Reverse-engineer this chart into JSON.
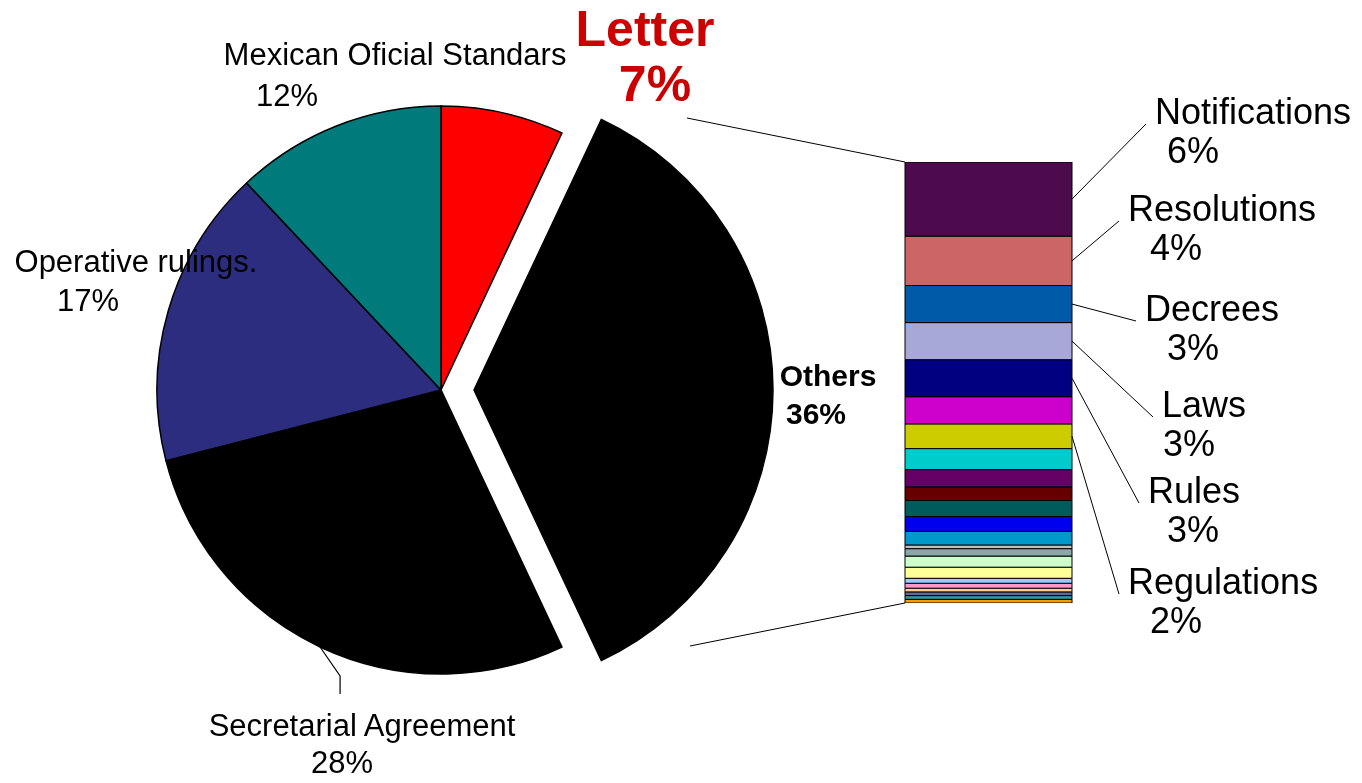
{
  "chart_data": [
    {
      "type": "pie",
      "categories": [
        "Letter",
        "Others",
        "Secretarial Agreement",
        "Operative rulings.",
        "Mexican Oficial Standars"
      ],
      "values": [
        7,
        36,
        28,
        17,
        12
      ],
      "colors": [
        "#ff0000",
        "#000000",
        "#000000",
        "#2d2d80",
        "#007a7a"
      ],
      "value_labels": [
        "7%",
        "36%",
        "28%",
        "17%",
        "12%"
      ]
    },
    {
      "type": "bar",
      "stacked": true,
      "categories": [
        null
      ],
      "tick_labels": false,
      "series": [
        {
          "color": "#ff9900",
          "values": [
            0.3
          ]
        },
        {
          "color": "#339999",
          "values": [
            0.3
          ]
        },
        {
          "color": "#666699",
          "values": [
            0.3
          ]
        },
        {
          "color": "#ffcc99",
          "values": [
            0.3
          ]
        },
        {
          "color": "#ff99cc",
          "values": [
            0.4
          ]
        },
        {
          "color": "#99ccff",
          "values": [
            0.4
          ]
        },
        {
          "color": "#ffff99",
          "values": [
            0.9
          ]
        },
        {
          "color": "#ccffcc",
          "values": [
            0.9
          ]
        },
        {
          "color": "#8aa8a8",
          "values": [
            0.6
          ]
        },
        {
          "color": "#c0c0c0",
          "values": [
            0.3
          ]
        },
        {
          "color": "#0099cc",
          "values": [
            1.1
          ]
        },
        {
          "color": "#0000ee",
          "values": [
            1.2
          ]
        },
        {
          "color": "#005c5c",
          "values": [
            1.3
          ]
        },
        {
          "color": "#660000",
          "values": [
            1.1
          ]
        },
        {
          "color": "#660066",
          "values": [
            1.4
          ]
        },
        {
          "color": "#00cccc",
          "values": [
            1.7
          ]
        },
        {
          "name": "Regulations",
          "color": "#cccc00",
          "values": [
            2
          ],
          "value_labels": [
            "2%"
          ]
        },
        {
          "color": "#cc00cc",
          "values": [
            2.2
          ]
        },
        {
          "name": "Rules",
          "color": "#000080",
          "values": [
            3
          ],
          "value_labels": [
            "3%"
          ]
        },
        {
          "name": "Laws",
          "color": "#a8a8d8",
          "values": [
            3
          ],
          "value_labels": [
            "3%"
          ]
        },
        {
          "name": "Decrees",
          "color": "#005aa8",
          "values": [
            3
          ],
          "value_labels": [
            "3%"
          ]
        },
        {
          "name": "Resolutions",
          "color": "#cc6666",
          "values": [
            4
          ],
          "value_labels": [
            "4%"
          ]
        },
        {
          "name": "Notifications",
          "color": "#4d0a4d",
          "values": [
            6
          ],
          "value_labels": [
            "6%"
          ]
        }
      ]
    }
  ]
}
